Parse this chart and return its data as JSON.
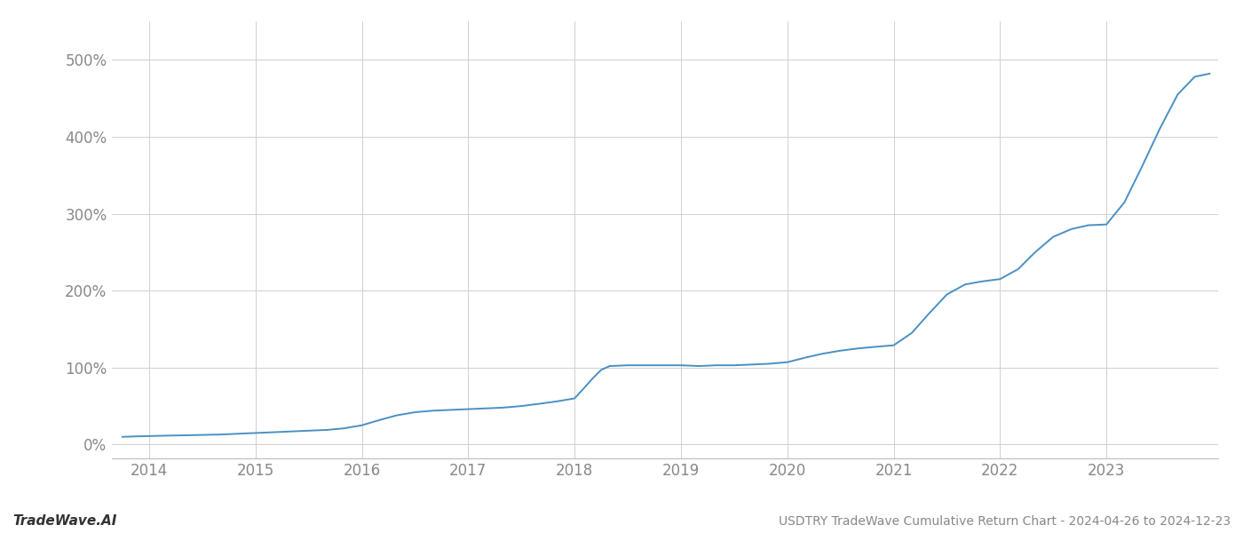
{
  "title": "USDTRY TradeWave Cumulative Return Chart - 2024-04-26 to 2024-12-23",
  "watermark": "TradeWave.AI",
  "line_color": "#4a90c4",
  "background_color": "#ffffff",
  "grid_color": "#d0d0d0",
  "x_years": [
    2014,
    2015,
    2016,
    2017,
    2018,
    2019,
    2020,
    2021,
    2022,
    2023
  ],
  "x_tick_color": "#888888",
  "y_tick_color": "#888888",
  "ylim": [
    -18,
    550
  ],
  "yticks": [
    0,
    100,
    200,
    300,
    400,
    500
  ],
  "xlim": [
    2013.65,
    2024.05
  ],
  "data_x": [
    2013.75,
    2013.85,
    2014.0,
    2014.15,
    2014.33,
    2014.5,
    2014.67,
    2014.83,
    2015.0,
    2015.17,
    2015.33,
    2015.5,
    2015.67,
    2015.83,
    2016.0,
    2016.17,
    2016.33,
    2016.5,
    2016.67,
    2016.83,
    2017.0,
    2017.17,
    2017.33,
    2017.5,
    2017.67,
    2017.83,
    2018.0,
    2018.08,
    2018.17,
    2018.25,
    2018.33,
    2018.5,
    2018.67,
    2018.83,
    2019.0,
    2019.17,
    2019.33,
    2019.5,
    2019.67,
    2019.83,
    2020.0,
    2020.17,
    2020.33,
    2020.5,
    2020.67,
    2020.83,
    2021.0,
    2021.17,
    2021.33,
    2021.5,
    2021.67,
    2021.83,
    2022.0,
    2022.17,
    2022.33,
    2022.5,
    2022.67,
    2022.83,
    2023.0,
    2023.17,
    2023.33,
    2023.5,
    2023.67,
    2023.83,
    2023.97
  ],
  "data_y": [
    10,
    10.5,
    11,
    11.5,
    12,
    12.5,
    13,
    14,
    15,
    16,
    17,
    18,
    19,
    21,
    25,
    32,
    38,
    42,
    44,
    45,
    46,
    47,
    48,
    50,
    53,
    56,
    60,
    72,
    86,
    97,
    102,
    103,
    103,
    103,
    103,
    102,
    103,
    103,
    104,
    105,
    107,
    113,
    118,
    122,
    125,
    127,
    129,
    145,
    170,
    195,
    208,
    212,
    215,
    228,
    250,
    270,
    280,
    285,
    286,
    315,
    360,
    410,
    455,
    478,
    482
  ]
}
